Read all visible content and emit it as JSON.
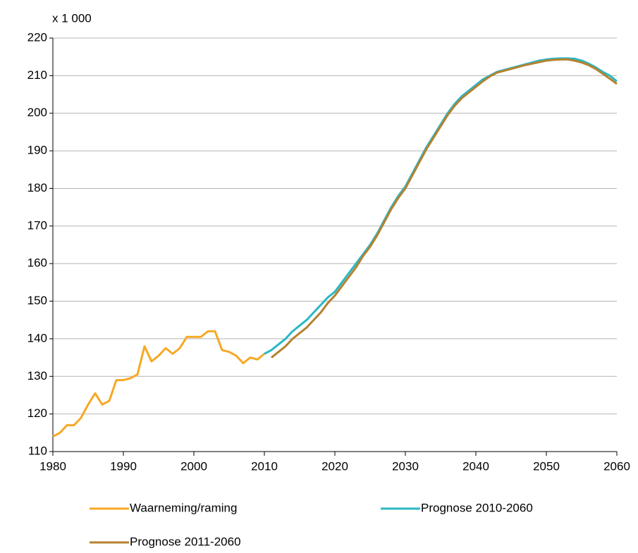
{
  "chart_data": {
    "type": "line",
    "y_unit_label": "x 1 000",
    "x": [
      1980,
      1981,
      1982,
      1983,
      1984,
      1985,
      1986,
      1987,
      1988,
      1989,
      1990,
      1991,
      1992,
      1993,
      1994,
      1995,
      1996,
      1997,
      1998,
      1999,
      2000,
      2001,
      2002,
      2003,
      2004,
      2005,
      2006,
      2007,
      2008,
      2009,
      2010,
      2011,
      2012,
      2013,
      2014,
      2015,
      2016,
      2017,
      2018,
      2019,
      2020,
      2021,
      2022,
      2023,
      2024,
      2025,
      2026,
      2027,
      2028,
      2029,
      2030,
      2031,
      2032,
      2033,
      2034,
      2035,
      2036,
      2037,
      2038,
      2039,
      2040,
      2041,
      2042,
      2043,
      2044,
      2045,
      2046,
      2047,
      2048,
      2049,
      2050,
      2051,
      2052,
      2053,
      2054,
      2055,
      2056,
      2057,
      2058,
      2059,
      2060
    ],
    "series": [
      {
        "name": "Waarneming/raming",
        "color": "#f7a823",
        "values": [
          114,
          115,
          117,
          117,
          119,
          122.5,
          125.5,
          122.5,
          123.5,
          129,
          129,
          129.5,
          130.5,
          138,
          134,
          135.5,
          137.5,
          136,
          137.5,
          140.5,
          140.5,
          140.5,
          142,
          142,
          137,
          136.5,
          135.5,
          133.5,
          135,
          134.5,
          136,
          null,
          null,
          null,
          null,
          null,
          null,
          null,
          null,
          null,
          null,
          null,
          null,
          null,
          null,
          null,
          null,
          null,
          null,
          null,
          null,
          null,
          null,
          null,
          null,
          null,
          null,
          null,
          null,
          null,
          null,
          null,
          null,
          null,
          null,
          null,
          null,
          null,
          null,
          null,
          null,
          null,
          null,
          null,
          null,
          null,
          null,
          null,
          null,
          null,
          null
        ]
      },
      {
        "name": "Prognose 2010-2060",
        "color": "#2ab7c5",
        "values": [
          null,
          null,
          null,
          null,
          null,
          null,
          null,
          null,
          null,
          null,
          null,
          null,
          null,
          null,
          null,
          null,
          null,
          null,
          null,
          null,
          null,
          null,
          null,
          null,
          null,
          null,
          null,
          null,
          null,
          null,
          136,
          137,
          138.5,
          140,
          142,
          143.5,
          145,
          147,
          149,
          151,
          152.5,
          155,
          157.5,
          160,
          162.5,
          165,
          168,
          171.5,
          175,
          178,
          180.5,
          184,
          187.5,
          191,
          194,
          197,
          200,
          202.5,
          204.5,
          206,
          207.5,
          209,
          210,
          211,
          211.5,
          212,
          212.5,
          213,
          213.5,
          214,
          214.3,
          214.5,
          214.6,
          214.6,
          214.5,
          214,
          213.2,
          212.2,
          211,
          210,
          208.5
        ]
      },
      {
        "name": "Prognose 2011-2060",
        "color": "#b5812f",
        "values": [
          null,
          null,
          null,
          null,
          null,
          null,
          null,
          null,
          null,
          null,
          null,
          null,
          null,
          null,
          null,
          null,
          null,
          null,
          null,
          null,
          null,
          null,
          null,
          null,
          null,
          null,
          null,
          null,
          null,
          null,
          null,
          135,
          136.5,
          138,
          140,
          141.5,
          143,
          145,
          147,
          149.5,
          151.5,
          154,
          156.5,
          159,
          162,
          164.5,
          167.5,
          171,
          174.5,
          177.5,
          180,
          183.5,
          187,
          190.5,
          193.5,
          196.5,
          199.5,
          202,
          204,
          205.5,
          207,
          208.5,
          209.8,
          210.8,
          211.3,
          211.8,
          212.3,
          212.8,
          213.2,
          213.6,
          214,
          214.2,
          214.3,
          214.3,
          214,
          213.5,
          212.8,
          211.8,
          210.5,
          209.2,
          207.8
        ]
      }
    ],
    "xlim": [
      1980,
      2060
    ],
    "xticks": [
      1980,
      1990,
      2000,
      2010,
      2020,
      2030,
      2040,
      2050,
      2060
    ],
    "ylim": [
      110,
      220
    ],
    "yticks": [
      110,
      120,
      130,
      140,
      150,
      160,
      170,
      180,
      190,
      200,
      210,
      220
    ],
    "grid": true
  }
}
